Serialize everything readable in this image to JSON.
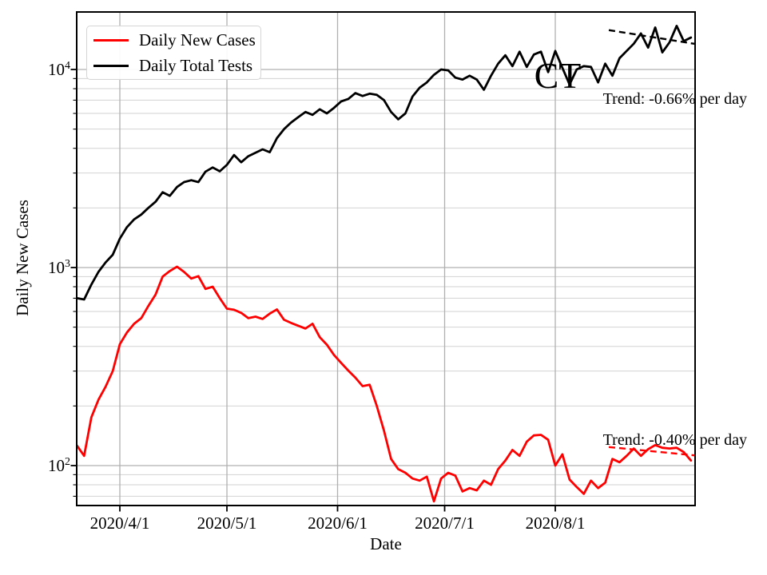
{
  "chart_data": {
    "type": "line",
    "state_label": "CT",
    "xlabel": "Date",
    "ylabel": "Daily New Cases",
    "y_scale": "log",
    "ylim": [
      62,
      19500
    ],
    "grid": true,
    "legend_position": "upper-left",
    "x_start_date": "2020/3/20",
    "x_step_days": 2,
    "x_ticks": [
      {
        "label": "2020/4/1",
        "day": 12
      },
      {
        "label": "2020/5/1",
        "day": 42
      },
      {
        "label": "2020/6/1",
        "day": 73
      },
      {
        "label": "2020/7/1",
        "day": 103
      },
      {
        "label": "2020/8/1",
        "day": 134
      }
    ],
    "y_ticks": [
      {
        "base": "10",
        "exp": "4",
        "value": 10000
      },
      {
        "base": "10",
        "exp": "3",
        "value": 1000
      },
      {
        "base": "10",
        "exp": "2",
        "value": 100
      }
    ],
    "series": [
      {
        "name": "Daily New Cases",
        "color": "#ff0000",
        "values": [
          126,
          112,
          175,
          215,
          250,
          300,
          410,
          470,
          520,
          555,
          640,
          730,
          900,
          960,
          1010,
          950,
          880,
          905,
          780,
          800,
          700,
          620,
          612,
          590,
          555,
          565,
          550,
          585,
          615,
          545,
          525,
          508,
          492,
          520,
          445,
          408,
          362,
          330,
          302,
          278,
          252,
          256,
          200,
          150,
          108,
          96,
          92,
          86,
          84,
          88,
          66,
          86,
          92,
          89,
          74,
          77,
          75,
          84,
          80,
          96,
          106,
          120,
          112,
          132,
          142,
          143,
          135,
          100,
          114,
          85,
          78,
          72,
          84,
          77,
          82,
          108,
          104,
          112,
          122,
          112,
          121,
          127,
          123,
          122,
          123,
          117,
          106
        ]
      },
      {
        "name": "Daily Total Tests",
        "color": "#000000",
        "values": [
          700,
          690,
          820,
          950,
          1060,
          1160,
          1400,
          1600,
          1750,
          1850,
          2000,
          2150,
          2400,
          2300,
          2550,
          2700,
          2760,
          2700,
          3050,
          3200,
          3060,
          3300,
          3700,
          3400,
          3650,
          3800,
          3950,
          3820,
          4500,
          5000,
          5400,
          5750,
          6100,
          5900,
          6300,
          6000,
          6400,
          6900,
          7100,
          7600,
          7350,
          7550,
          7450,
          7000,
          6100,
          5600,
          6000,
          7300,
          8100,
          8600,
          9400,
          10000,
          9900,
          9100,
          8900,
          9300,
          8900,
          7900,
          9300,
          10700,
          11800,
          10400,
          12300,
          10300,
          11900,
          12300,
          9700,
          12400,
          10200,
          8400,
          10000,
          10400,
          10300,
          8600,
          10700,
          9300,
          11400,
          12400,
          13500,
          15200,
          12900,
          16300,
          12200,
          13700,
          16600,
          13900,
          14500
        ]
      }
    ],
    "trend_lines": [
      {
        "series": "Daily Total Tests",
        "label": "Trend: -0.66% per day",
        "rate_pct_per_day": -0.66,
        "start_day": 149,
        "end_day": 173,
        "start_value": 15800,
        "color": "#000000"
      },
      {
        "series": "Daily New Cases",
        "label": "Trend: -0.40% per day",
        "rate_pct_per_day": -0.4,
        "start_day": 149,
        "end_day": 173,
        "start_value": 124,
        "color": "#ff0000"
      }
    ]
  }
}
